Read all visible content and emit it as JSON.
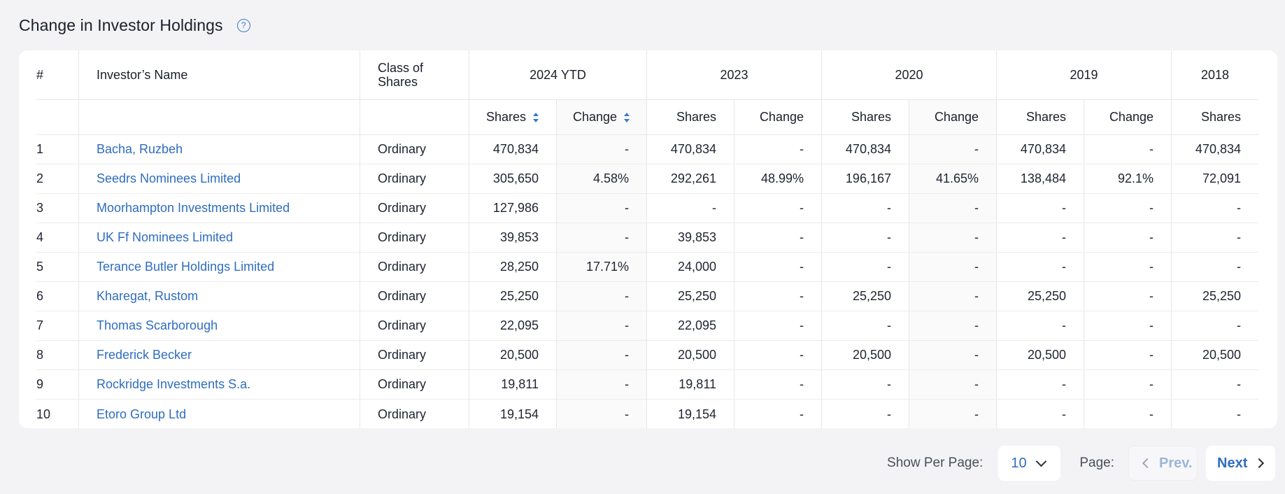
{
  "header": {
    "title": "Change in Investor Holdings",
    "help_icon": "question-circle-icon"
  },
  "table": {
    "columns": {
      "num": "#",
      "name": "Investor’s Name",
      "class_line1": "Class of",
      "class_line2": "Shares",
      "years": [
        "2024 YTD",
        "2023",
        "2020",
        "2019",
        "2018"
      ],
      "shares": "Shares",
      "change": "Change"
    },
    "rows": [
      {
        "num": "1",
        "name": "Bacha, Ruzbeh",
        "class": "Ordinary",
        "v": [
          "470,834",
          "-",
          "470,834",
          "-",
          "470,834",
          "-",
          "470,834",
          "-",
          "470,834"
        ]
      },
      {
        "num": "2",
        "name": "Seedrs Nominees Limited",
        "class": "Ordinary",
        "v": [
          "305,650",
          "4.58%",
          "292,261",
          "48.99%",
          "196,167",
          "41.65%",
          "138,484",
          "92.1%",
          "72,091"
        ]
      },
      {
        "num": "3",
        "name": "Moorhampton Investments Limited",
        "class": "Ordinary",
        "v": [
          "127,986",
          "-",
          "-",
          "-",
          "-",
          "-",
          "-",
          "-",
          "-"
        ]
      },
      {
        "num": "4",
        "name": "UK Ff Nominees Limited",
        "class": "Ordinary",
        "v": [
          "39,853",
          "-",
          "39,853",
          "-",
          "-",
          "-",
          "-",
          "-",
          "-"
        ]
      },
      {
        "num": "5",
        "name": "Terance Butler Holdings Limited",
        "class": "Ordinary",
        "v": [
          "28,250",
          "17.71%",
          "24,000",
          "-",
          "-",
          "-",
          "-",
          "-",
          "-"
        ]
      },
      {
        "num": "6",
        "name": "Kharegat, Rustom",
        "class": "Ordinary",
        "v": [
          "25,250",
          "-",
          "25,250",
          "-",
          "25,250",
          "-",
          "25,250",
          "-",
          "25,250"
        ]
      },
      {
        "num": "7",
        "name": "Thomas Scarborough",
        "class": "Ordinary",
        "v": [
          "22,095",
          "-",
          "22,095",
          "-",
          "-",
          "-",
          "-",
          "-",
          "-"
        ]
      },
      {
        "num": "8",
        "name": "Frederick Becker",
        "class": "Ordinary",
        "v": [
          "20,500",
          "-",
          "20,500",
          "-",
          "20,500",
          "-",
          "20,500",
          "-",
          "20,500"
        ]
      },
      {
        "num": "9",
        "name": "Rockridge Investments S.a.",
        "class": "Ordinary",
        "v": [
          "19,811",
          "-",
          "19,811",
          "-",
          "-",
          "-",
          "-",
          "-",
          "-"
        ]
      },
      {
        "num": "10",
        "name": "Etoro Group Ltd",
        "class": "Ordinary",
        "v": [
          "19,154",
          "-",
          "19,154",
          "-",
          "-",
          "-",
          "-",
          "-",
          "-"
        ]
      }
    ]
  },
  "pagination": {
    "per_page_label": "Show Per Page:",
    "per_page_value": "10",
    "page_label": "Page:",
    "prev_label": "Prev.",
    "next_label": "Next"
  }
}
